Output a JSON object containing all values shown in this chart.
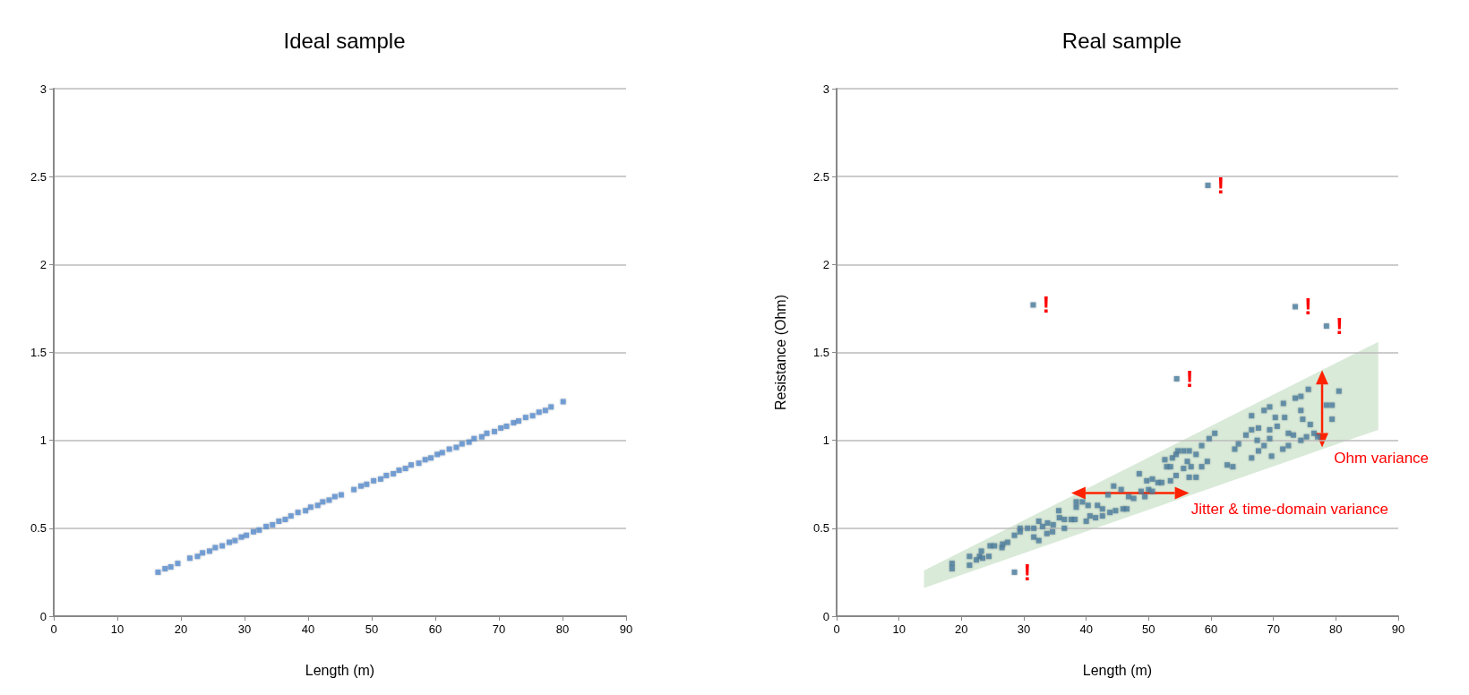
{
  "chart_data": [
    {
      "type": "scatter",
      "title": "Ideal sample",
      "xlabel": "Length (m)",
      "marker": "square",
      "grid": "y",
      "xlim": [
        0,
        90
      ],
      "xticks": [
        0,
        10,
        20,
        30,
        40,
        50,
        60,
        70,
        80,
        90
      ],
      "ylim": [
        0,
        3
      ],
      "yticks": [
        0,
        0.5,
        1,
        1.5,
        2,
        2.5,
        3
      ],
      "series": [
        {
          "color": "#5b8fd0",
          "x": [
            16.4,
            17.5,
            18.4,
            19.5,
            21.4,
            22.6,
            23.4,
            24.5,
            25.4,
            26.5,
            27.6,
            28.5,
            29.5,
            30.3,
            31.4,
            32.3,
            33.4,
            34.4,
            35.4,
            36.4,
            37.3,
            38.4,
            39.6,
            40.4,
            41.5,
            42.3,
            43.3,
            44.2,
            45.2,
            47.2,
            48.3,
            49.2,
            50.3,
            51.4,
            52.3,
            53.4,
            54.3,
            55.3,
            56.2,
            57.4,
            58.4,
            59.3,
            60.3,
            61.1,
            62.2,
            63.3,
            64.2,
            65.3,
            66.1,
            67.3,
            68.1,
            69.3,
            70.3,
            71.2,
            72.3,
            73.1,
            74.2,
            75.3,
            76.3,
            77.3,
            78.2,
            80.1
          ],
          "values": [
            0.25,
            0.27,
            0.28,
            0.3,
            0.33,
            0.34,
            0.36,
            0.37,
            0.39,
            0.4,
            0.42,
            0.43,
            0.45,
            0.46,
            0.48,
            0.49,
            0.51,
            0.52,
            0.54,
            0.55,
            0.57,
            0.59,
            0.6,
            0.62,
            0.63,
            0.65,
            0.66,
            0.68,
            0.69,
            0.72,
            0.74,
            0.75,
            0.77,
            0.78,
            0.8,
            0.81,
            0.83,
            0.84,
            0.86,
            0.87,
            0.89,
            0.9,
            0.92,
            0.93,
            0.95,
            0.96,
            0.98,
            0.99,
            1.01,
            1.02,
            1.04,
            1.05,
            1.07,
            1.08,
            1.1,
            1.11,
            1.13,
            1.14,
            1.16,
            1.17,
            1.19,
            1.22
          ]
        }
      ]
    },
    {
      "type": "scatter",
      "title": "Real sample",
      "xlabel": "Length (m)",
      "ylabel": "Resistance (Ohm)",
      "marker": "square",
      "grid": "y",
      "xlim": [
        0,
        90
      ],
      "xticks": [
        0,
        10,
        20,
        30,
        40,
        50,
        60,
        70,
        80,
        90
      ],
      "ylim": [
        0,
        3
      ],
      "yticks": [
        0,
        0.5,
        1,
        1.5,
        2,
        2.5,
        3
      ],
      "series": [
        {
          "color": "#4f7fa0",
          "x": [
            18.5,
            18.5,
            21.3,
            21.3,
            22.4,
            22.9,
            23.2,
            23.4,
            24.4,
            24.6,
            25.3,
            26.5,
            26.6,
            27.4,
            28.5,
            29.4,
            29.4,
            30.6,
            31.6,
            31.6,
            32.4,
            32.4,
            33.0,
            33.7,
            33.8,
            34.6,
            34.7,
            35.6,
            35.7,
            36.5,
            36.5,
            37.6,
            38.2,
            38.4,
            38.4,
            39.4,
            40,
            40.3,
            40.6,
            41.5,
            41.8,
            42.6,
            42.6,
            43.5,
            43.8,
            44.4,
            44.7,
            45.6,
            45.9,
            46.5,
            46.8,
            47.6,
            48.5,
            48.8,
            49.4,
            49.7,
            50,
            50.6,
            50.6,
            51.5,
            52.1,
            52.6,
            52.9,
            53.5,
            53.5,
            53.8,
            54.4,
            54.4,
            54.7,
            55.6,
            55.6,
            56.2,
            56.5,
            56.5,
            56.8,
            57.6,
            57.6,
            58.5,
            58.5,
            59.4,
            59.7,
            60.6,
            62.6,
            63.5,
            63.8,
            64.4,
            65.6,
            66.5,
            66.5,
            66.5,
            67.4,
            67.6,
            67.6,
            68.5,
            68.5,
            69.4,
            69.4,
            69.4,
            69.7,
            70.3,
            70.6,
            71.5,
            71.6,
            71.8,
            72.4,
            72.4,
            73.2,
            73.5,
            74.4,
            74.4,
            74.4,
            74.7,
            75.3,
            75.6,
            75.9,
            76.5,
            77.1,
            78.5,
            79.4,
            79.4,
            80.5,
            31.5,
            59.5,
            73.5,
            78.5,
            54.5,
            28.5
          ],
          "values": [
            0.3,
            0.27,
            0.34,
            0.29,
            0.32,
            0.34,
            0.37,
            0.33,
            0.34,
            0.4,
            0.4,
            0.39,
            0.41,
            0.42,
            0.46,
            0.5,
            0.48,
            0.5,
            0.5,
            0.45,
            0.54,
            0.43,
            0.51,
            0.47,
            0.53,
            0.48,
            0.52,
            0.6,
            0.56,
            0.55,
            0.5,
            0.55,
            0.55,
            0.62,
            0.65,
            0.65,
            0.54,
            0.63,
            0.57,
            0.56,
            0.63,
            0.57,
            0.61,
            0.69,
            0.59,
            0.74,
            0.6,
            0.72,
            0.61,
            0.61,
            0.68,
            0.67,
            0.81,
            0.71,
            0.68,
            0.77,
            0.72,
            0.78,
            0.71,
            0.76,
            0.76,
            0.89,
            0.85,
            0.77,
            0.85,
            0.9,
            0.92,
            0.8,
            0.94,
            0.94,
            0.84,
            0.88,
            0.94,
            0.79,
            0.85,
            0.79,
            0.92,
            0.85,
            0.97,
            0.88,
            1.01,
            1.04,
            0.86,
            0.85,
            0.95,
            0.98,
            1.03,
            1.14,
            1.06,
            0.9,
            1.0,
            1.07,
            0.94,
            1.17,
            0.97,
            1.19,
            1.06,
            1.01,
            0.91,
            1.13,
            1.08,
            0.95,
            1.21,
            1.13,
            1.04,
            0.97,
            1.03,
            1.24,
            1.25,
            1.17,
            1.0,
            1.12,
            1.02,
            1.29,
            1.09,
            1.04,
            1.02,
            1.2,
            1.2,
            1.12,
            1.28,
            1.77,
            2.45,
            1.76,
            1.65,
            1.35,
            0.25
          ]
        }
      ],
      "annotations": [
        {
          "text": "!",
          "x": 31.5,
          "y": 1.77
        },
        {
          "text": "!",
          "x": 59.5,
          "y": 2.45
        },
        {
          "text": "!",
          "x": 73.5,
          "y": 1.76
        },
        {
          "text": "!",
          "x": 78.5,
          "y": 1.65
        },
        {
          "text": "!",
          "x": 54.5,
          "y": 1.35
        },
        {
          "text": "!",
          "x": 28.5,
          "y": 0.25
        },
        "Ohm variance",
        "Jitter & time-domain variance"
      ]
    }
  ]
}
